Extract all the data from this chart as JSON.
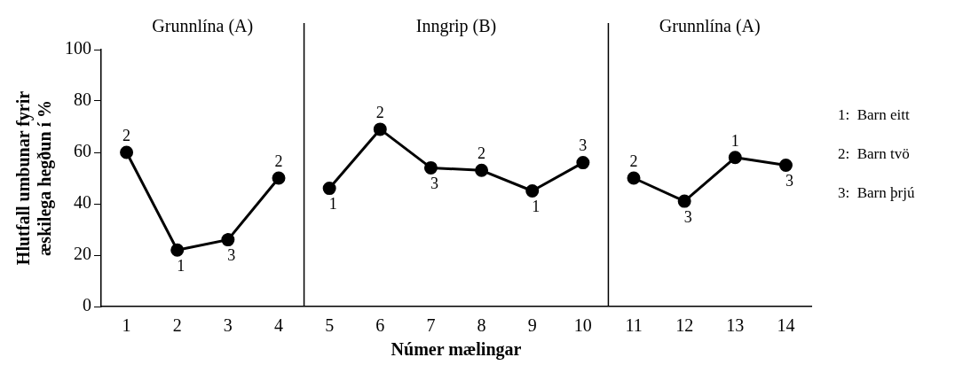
{
  "chart_data": {
    "type": "line",
    "xlabel": "Númer mælingar",
    "ylabel": "Hlutfall umbunar fyrir\næskilega hegðun í %",
    "xlim": [
      0.5,
      14.5
    ],
    "xticks": [
      1,
      2,
      3,
      4,
      5,
      6,
      7,
      8,
      9,
      10,
      11,
      12,
      13,
      14
    ],
    "ylim": [
      0,
      100
    ],
    "yticks": [
      0,
      20,
      40,
      60,
      80,
      100
    ],
    "grid": false,
    "legend": false,
    "marker": "circle",
    "line_style": "solid",
    "series": [
      {
        "color": "#000000",
        "x": [
          1,
          2,
          3,
          4
        ],
        "values": [
          60,
          22,
          26,
          50
        ]
      },
      {
        "color": "#000000",
        "x": [
          5,
          6,
          7,
          8,
          9,
          10
        ],
        "values": [
          46,
          69,
          54,
          53,
          45,
          56
        ]
      },
      {
        "color": "#000000",
        "x": [
          11,
          12,
          13,
          14
        ],
        "values": [
          50,
          41,
          58,
          55
        ]
      }
    ],
    "ref_lines": [
      {
        "axis": "x",
        "value": 4.5,
        "color": "#000000"
      },
      {
        "axis": "x",
        "value": 10.5,
        "color": "#000000"
      }
    ],
    "annotations": [
      "Grunnlína (A)",
      "Inngrip (B)",
      "Grunnlína (A)",
      {
        "text": "2",
        "x": 1,
        "y": 60
      },
      {
        "text": "1",
        "x": 2,
        "y": 22
      },
      {
        "text": "3",
        "x": 3,
        "y": 26
      },
      {
        "text": "2",
        "x": 4,
        "y": 50
      },
      {
        "text": "1",
        "x": 5,
        "y": 46
      },
      {
        "text": "2",
        "x": 6,
        "y": 69
      },
      {
        "text": "3",
        "x": 7,
        "y": 54
      },
      {
        "text": "2",
        "x": 8,
        "y": 53
      },
      {
        "text": "1",
        "x": 9,
        "y": 45
      },
      {
        "text": "3",
        "x": 10,
        "y": 56
      },
      {
        "text": "2",
        "x": 11,
        "y": 50
      },
      {
        "text": "3",
        "x": 12,
        "y": 41
      },
      {
        "text": "1",
        "x": 13,
        "y": 58
      },
      {
        "text": "3",
        "x": 14,
        "y": 55
      },
      "1:  Barn eitt",
      "2:  Barn tvö",
      "3:  Barn þrjú"
    ]
  }
}
